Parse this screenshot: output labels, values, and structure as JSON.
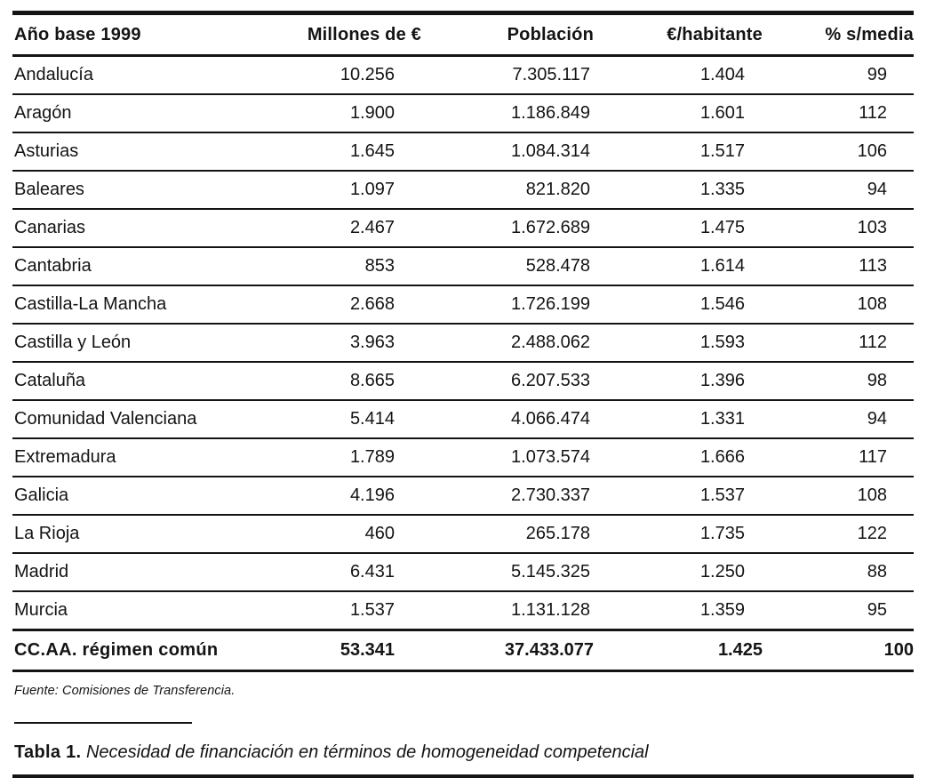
{
  "table": {
    "header": {
      "region": "Año base 1999",
      "millones": "Millones de €",
      "poblacion": "Población",
      "habitante": "€/habitante",
      "media": "% s/media"
    },
    "rows": [
      {
        "region": "Andalucía",
        "millones": "10.256",
        "poblacion": "7.305.117",
        "habitante": "1.404",
        "media": "99"
      },
      {
        "region": "Aragón",
        "millones": "1.900",
        "poblacion": "1.186.849",
        "habitante": "1.601",
        "media": "112"
      },
      {
        "region": "Asturias",
        "millones": "1.645",
        "poblacion": "1.084.314",
        "habitante": "1.517",
        "media": "106"
      },
      {
        "region": "Baleares",
        "millones": "1.097",
        "poblacion": "821.820",
        "habitante": "1.335",
        "media": "94"
      },
      {
        "region": "Canarias",
        "millones": "2.467",
        "poblacion": "1.672.689",
        "habitante": "1.475",
        "media": "103"
      },
      {
        "region": "Cantabria",
        "millones": "853",
        "poblacion": "528.478",
        "habitante": "1.614",
        "media": "113"
      },
      {
        "region": "Castilla-La Mancha",
        "millones": "2.668",
        "poblacion": "1.726.199",
        "habitante": "1.546",
        "media": "108"
      },
      {
        "region": "Castilla y León",
        "millones": "3.963",
        "poblacion": "2.488.062",
        "habitante": "1.593",
        "media": "112"
      },
      {
        "region": "Cataluña",
        "millones": "8.665",
        "poblacion": "6.207.533",
        "habitante": "1.396",
        "media": "98"
      },
      {
        "region": "Comunidad Valenciana",
        "millones": "5.414",
        "poblacion": "4.066.474",
        "habitante": "1.331",
        "media": "94"
      },
      {
        "region": "Extremadura",
        "millones": "1.789",
        "poblacion": "1.073.574",
        "habitante": "1.666",
        "media": "117"
      },
      {
        "region": "Galicia",
        "millones": "4.196",
        "poblacion": "2.730.337",
        "habitante": "1.537",
        "media": "108"
      },
      {
        "region": "La Rioja",
        "millones": "460",
        "poblacion": "265.178",
        "habitante": "1.735",
        "media": "122"
      },
      {
        "region": "Madrid",
        "millones": "6.431",
        "poblacion": "5.145.325",
        "habitante": "1.250",
        "media": "88"
      },
      {
        "region": "Murcia",
        "millones": "1.537",
        "poblacion": "1.131.128",
        "habitante": "1.359",
        "media": "95"
      }
    ],
    "total": {
      "region": "CC.AA. régimen común",
      "millones": "53.341",
      "poblacion": "37.433.077",
      "habitante": "1.425",
      "media": "100"
    }
  },
  "source_note": "Fuente: Comisiones de Transferencia.",
  "caption": {
    "label": "Tabla 1.",
    "text": " Necesidad de financiación en términos de homogeneidad competencial"
  }
}
